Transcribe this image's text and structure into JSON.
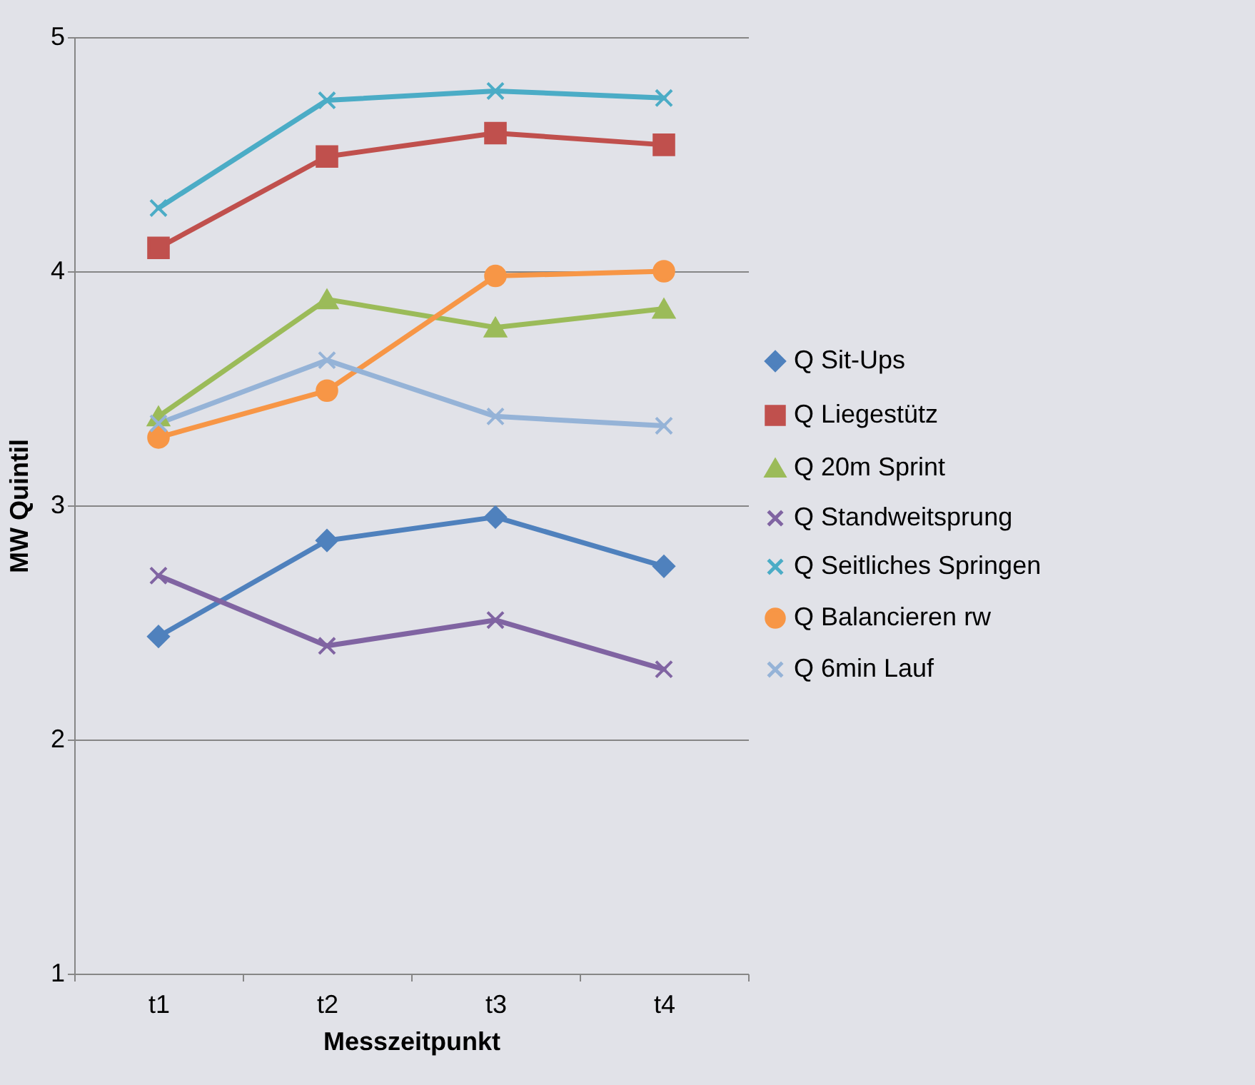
{
  "chart_data": {
    "type": "line",
    "xlabel": "Messzeitpunkt",
    "ylabel": "MW Quintil",
    "categories": [
      "t1",
      "t2",
      "t3",
      "t4"
    ],
    "ylim": [
      1,
      5
    ],
    "yticks": [
      1,
      2,
      3,
      4,
      5
    ],
    "grid": "y",
    "legend": "right",
    "line_style": "solid",
    "series": [
      {
        "name": "Q Sit-Ups",
        "color": "#4f81bd",
        "marker": "diamond",
        "values": [
          2.44,
          2.85,
          2.95,
          2.74
        ]
      },
      {
        "name": "Q Liegestütz",
        "color": "#c0504d",
        "marker": "square",
        "values": [
          4.1,
          4.49,
          4.59,
          4.54
        ]
      },
      {
        "name": "Q 20m Sprint",
        "color": "#9bbb59",
        "marker": "triangle",
        "values": [
          3.38,
          3.88,
          3.76,
          3.84
        ]
      },
      {
        "name": "Q Standweitsprung",
        "color": "#8064a2",
        "marker": "cross",
        "values": [
          2.7,
          2.4,
          2.51,
          2.3
        ]
      },
      {
        "name": "Q Seitliches Springen",
        "color": "#4bacc6",
        "marker": "cross",
        "values": [
          4.27,
          4.73,
          4.77,
          4.74
        ]
      },
      {
        "name": "Q Balancieren rw",
        "color": "#f79646",
        "marker": "circle",
        "values": [
          3.29,
          3.49,
          3.98,
          4.0
        ]
      },
      {
        "name": "Q 6min Lauf",
        "color": "#95b3d7",
        "marker": "cross",
        "values": [
          3.35,
          3.62,
          3.38,
          3.34
        ]
      }
    ]
  }
}
